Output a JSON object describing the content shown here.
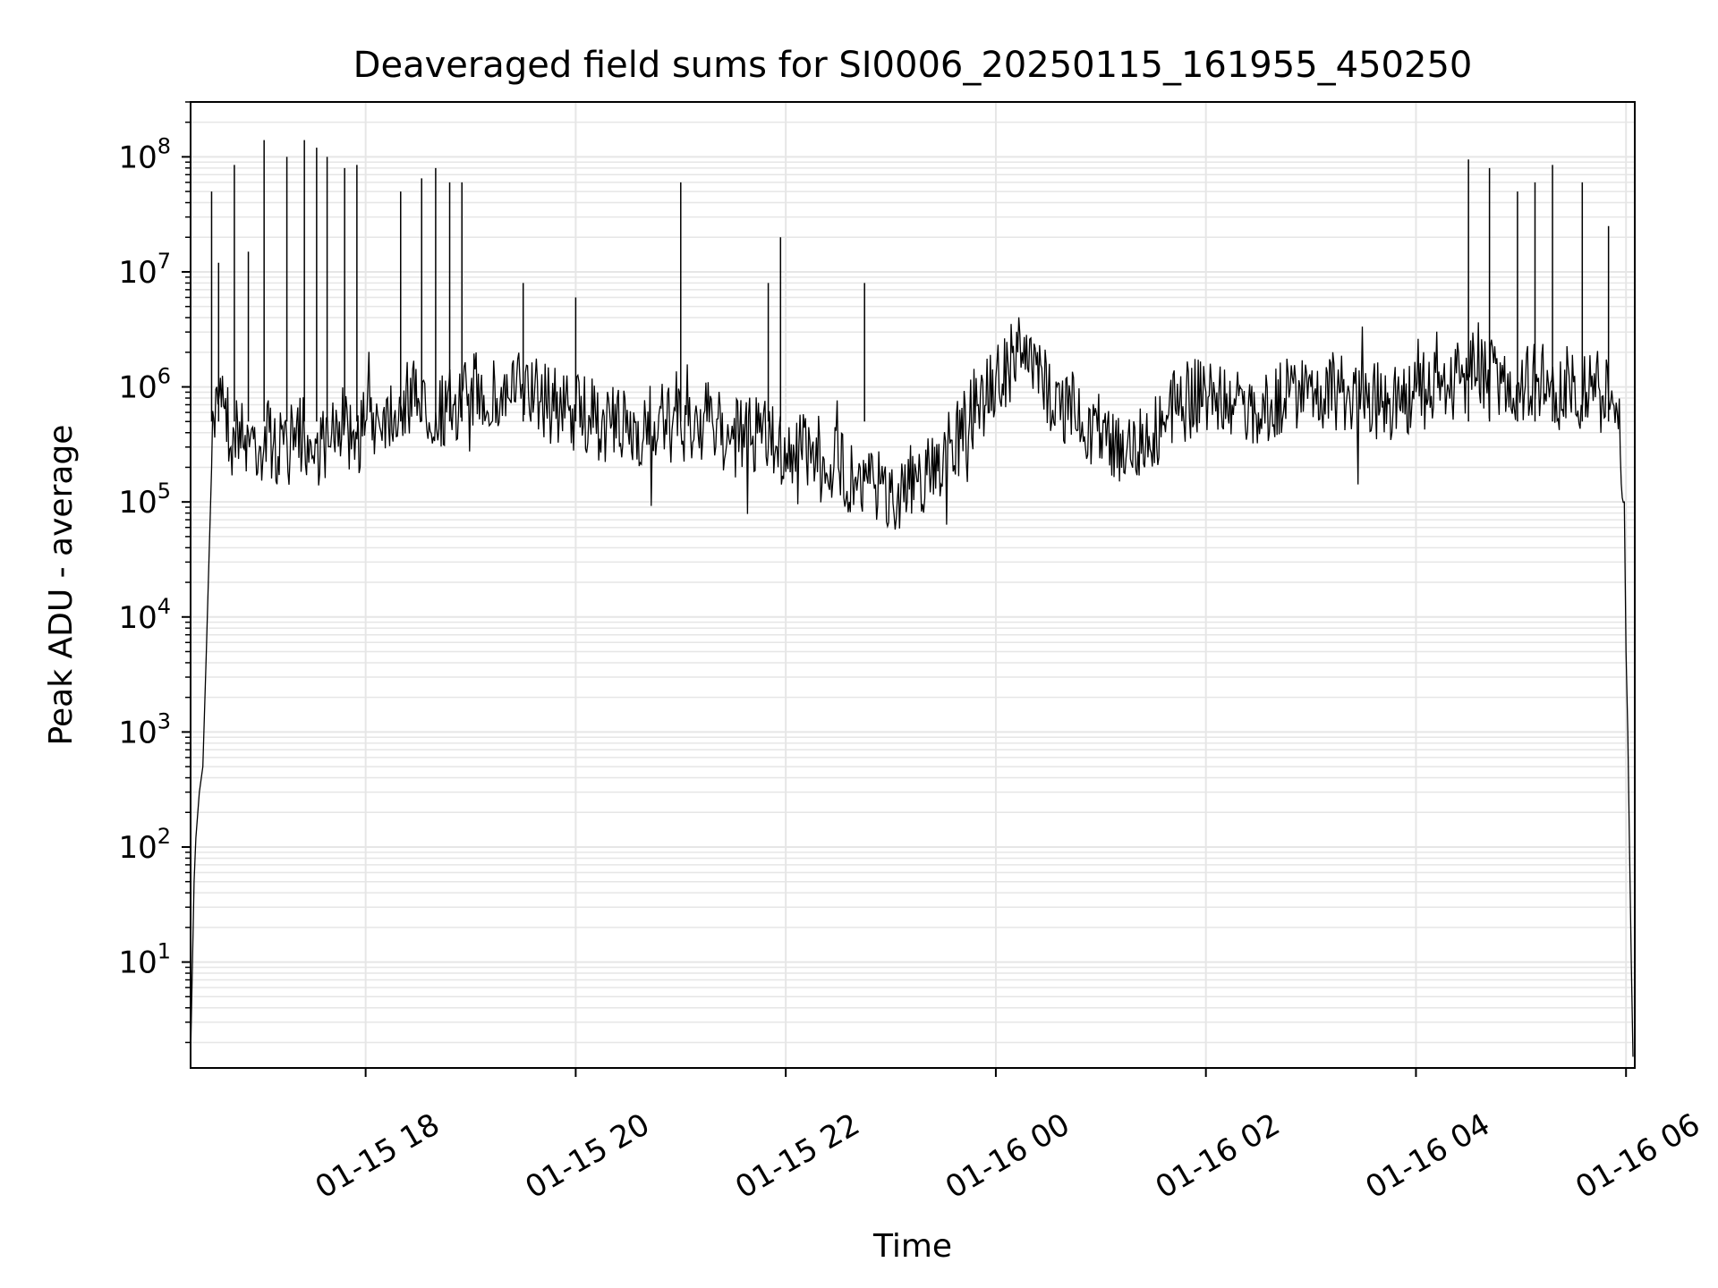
{
  "chart_data": {
    "type": "line",
    "title": "Deaveraged field sums for SI0006_20250115_161955_450250",
    "xlabel": "Time",
    "ylabel": "Peak ADU - average",
    "x_scale": "time",
    "y_scale": "log",
    "xlim": [
      "2025-01-15 16:20",
      "2025-01-16 06:05"
    ],
    "ylim": [
      1.2,
      300000000
    ],
    "grid": true,
    "legend": "none",
    "line_color": "#000000",
    "grid_color": "#e6e6e6",
    "x_tick_labels": [
      "01-15 18",
      "01-15 20",
      "01-15 22",
      "01-16 00",
      "01-16 02",
      "01-16 04",
      "01-16 06"
    ],
    "x_ticks": [
      "2025-01-15 18:00",
      "2025-01-15 20:00",
      "2025-01-15 22:00",
      "2025-01-16 00:00",
      "2025-01-16 02:00",
      "2025-01-16 04:00",
      "2025-01-16 06:00"
    ],
    "y_tick_labels": [
      {
        "base": "10",
        "exp": "1"
      },
      {
        "base": "10",
        "exp": "2"
      },
      {
        "base": "10",
        "exp": "3"
      },
      {
        "base": "10",
        "exp": "4"
      },
      {
        "base": "10",
        "exp": "5"
      },
      {
        "base": "10",
        "exp": "6"
      },
      {
        "base": "10",
        "exp": "7"
      },
      {
        "base": "10",
        "exp": "8"
      }
    ],
    "y_ticks": [
      10,
      100,
      1000,
      10000,
      100000,
      1000000,
      10000000,
      100000000
    ],
    "series": [
      {
        "x": [
          "2025-01-15 16:20",
          "2025-01-15 16:22",
          "2025-01-15 16:23",
          "2025-01-15 16:25",
          "2025-01-15 16:27",
          "2025-01-15 16:29",
          "2025-01-15 16:32",
          "2025-01-15 16:35",
          "2025-01-15 16:37",
          "2025-01-15 16:40",
          "2025-01-15 16:43",
          "2025-01-15 16:45",
          "2025-01-15 16:48",
          "2025-01-15 16:50",
          "2025-01-15 16:53",
          "2025-01-15 16:56",
          "2025-01-15 17:00",
          "2025-01-15 17:05",
          "2025-01-15 17:10",
          "2025-01-15 17:15",
          "2025-01-15 17:20",
          "2025-01-15 17:25",
          "2025-01-15 17:30",
          "2025-01-15 17:35",
          "2025-01-15 17:40",
          "2025-01-15 17:45",
          "2025-01-15 17:50",
          "2025-01-15 17:55",
          "2025-01-15 18:00",
          "2025-01-15 18:10",
          "2025-01-15 18:20",
          "2025-01-15 18:30",
          "2025-01-15 18:40",
          "2025-01-15 18:50",
          "2025-01-15 19:00",
          "2025-01-15 19:15",
          "2025-01-15 19:30",
          "2025-01-15 19:45",
          "2025-01-15 20:00",
          "2025-01-15 20:15",
          "2025-01-15 20:30",
          "2025-01-15 20:45",
          "2025-01-15 21:00",
          "2025-01-15 21:15",
          "2025-01-15 21:30",
          "2025-01-15 21:45",
          "2025-01-15 21:55",
          "2025-01-15 22:05",
          "2025-01-15 22:15",
          "2025-01-15 22:30",
          "2025-01-15 22:45",
          "2025-01-15 23:00",
          "2025-01-15 23:15",
          "2025-01-15 23:30",
          "2025-01-15 23:45",
          "2025-01-16 00:00",
          "2025-01-16 00:15",
          "2025-01-16 00:30",
          "2025-01-16 00:45",
          "2025-01-16 01:00",
          "2025-01-16 01:15",
          "2025-01-16 01:30",
          "2025-01-16 01:45",
          "2025-01-16 02:00",
          "2025-01-16 02:15",
          "2025-01-16 02:30",
          "2025-01-16 02:45",
          "2025-01-16 03:00",
          "2025-01-16 03:15",
          "2025-01-16 03:30",
          "2025-01-16 03:45",
          "2025-01-16 04:00",
          "2025-01-16 04:15",
          "2025-01-16 04:30",
          "2025-01-16 04:40",
          "2025-01-16 04:50",
          "2025-01-16 05:00",
          "2025-01-16 05:10",
          "2025-01-16 05:20",
          "2025-01-16 05:30",
          "2025-01-16 05:40",
          "2025-01-16 05:50",
          "2025-01-16 05:55",
          "2025-01-16 05:59",
          "2025-01-16 06:00",
          "2025-01-16 06:01",
          "2025-01-16 06:02",
          "2025-01-16 06:03",
          "2025-01-16 06:04"
        ],
        "y": [
          1.5,
          50,
          120,
          300,
          500,
          5000,
          200000,
          1000000,
          1200000,
          800000,
          300000,
          400000,
          500000,
          300000,
          400000,
          350000,
          300000,
          400000,
          250000,
          350000,
          300000,
          400000,
          250000,
          350000,
          300000,
          500000,
          400000,
          350000,
          500000,
          600000,
          700000,
          800000,
          600000,
          700000,
          900000,
          800000,
          1000000,
          700000,
          600000,
          500000,
          400000,
          500000,
          450000,
          500000,
          350000,
          400000,
          300000,
          250000,
          300000,
          200000,
          150000,
          120000,
          150000,
          250000,
          500000,
          1200000,
          2000000,
          900000,
          600000,
          400000,
          300000,
          400000,
          700000,
          900000,
          700000,
          600000,
          800000,
          1000000,
          900000,
          700000,
          800000,
          900000,
          1000000,
          1300000,
          1200000,
          1100000,
          1000000,
          1200000,
          900000,
          1100000,
          1000000,
          800000,
          600000,
          100000,
          5000,
          1000,
          100,
          10,
          1.5
        ]
      }
    ],
    "spikes": [
      {
        "x": "2025-01-15 16:32",
        "y": 50000000
      },
      {
        "x": "2025-01-15 16:36",
        "y": 12000000
      },
      {
        "x": "2025-01-15 16:45",
        "y": 85000000
      },
      {
        "x": "2025-01-15 16:53",
        "y": 15000000
      },
      {
        "x": "2025-01-15 17:02",
        "y": 140000000
      },
      {
        "x": "2025-01-15 17:15",
        "y": 100000000
      },
      {
        "x": "2025-01-15 17:25",
        "y": 140000000
      },
      {
        "x": "2025-01-15 17:32",
        "y": 120000000
      },
      {
        "x": "2025-01-15 17:38",
        "y": 100000000
      },
      {
        "x": "2025-01-15 17:48",
        "y": 80000000
      },
      {
        "x": "2025-01-15 17:55",
        "y": 85000000
      },
      {
        "x": "2025-01-15 18:20",
        "y": 50000000
      },
      {
        "x": "2025-01-15 18:32",
        "y": 65000000
      },
      {
        "x": "2025-01-15 18:40",
        "y": 80000000
      },
      {
        "x": "2025-01-15 18:48",
        "y": 60000000
      },
      {
        "x": "2025-01-15 18:55",
        "y": 60000000
      },
      {
        "x": "2025-01-15 19:30",
        "y": 8000000
      },
      {
        "x": "2025-01-15 20:00",
        "y": 6000000
      },
      {
        "x": "2025-01-15 21:00",
        "y": 60000000
      },
      {
        "x": "2025-01-15 21:50",
        "y": 8000000
      },
      {
        "x": "2025-01-15 21:57",
        "y": 20000000
      },
      {
        "x": "2025-01-15 22:45",
        "y": 8000000
      },
      {
        "x": "2025-01-16 04:30",
        "y": 95000000
      },
      {
        "x": "2025-01-16 04:42",
        "y": 80000000
      },
      {
        "x": "2025-01-16 04:58",
        "y": 50000000
      },
      {
        "x": "2025-01-16 05:08",
        "y": 60000000
      },
      {
        "x": "2025-01-16 05:18",
        "y": 85000000
      },
      {
        "x": "2025-01-16 05:35",
        "y": 60000000
      },
      {
        "x": "2025-01-16 05:50",
        "y": 25000000
      }
    ]
  }
}
